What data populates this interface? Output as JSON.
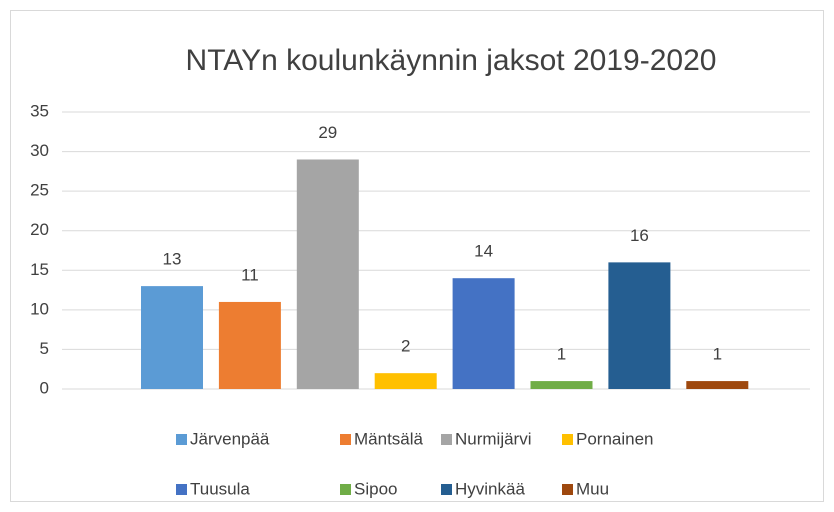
{
  "chart_data": {
    "type": "bar",
    "title": "NTAYn koulunkäynnin jaksot 2019-2020",
    "categories": [
      null
    ],
    "series": [
      {
        "name": "Järvenpää",
        "color": "#5b9bd5",
        "values": [
          13
        ]
      },
      {
        "name": "Mäntsälä",
        "color": "#ed7d31",
        "values": [
          11
        ]
      },
      {
        "name": "Nurmijärvi",
        "color": "#a5a5a5",
        "values": [
          29
        ]
      },
      {
        "name": "Pornainen",
        "color": "#ffc000",
        "values": [
          2
        ]
      },
      {
        "name": "Tuusula",
        "color": "#4472c4",
        "values": [
          14
        ]
      },
      {
        "name": "Sipoo",
        "color": "#70ad47",
        "values": [
          1
        ]
      },
      {
        "name": "Hyvinkää",
        "color": "#255e91",
        "values": [
          16
        ]
      },
      {
        "name": "Muu",
        "color": "#9e480e",
        "values": [
          1
        ]
      }
    ],
    "ylim": [
      0,
      35
    ],
    "yticks": [
      0,
      5,
      10,
      15,
      20,
      25,
      30,
      35
    ],
    "grid": true,
    "legend": "bottom",
    "data_labels": true
  }
}
